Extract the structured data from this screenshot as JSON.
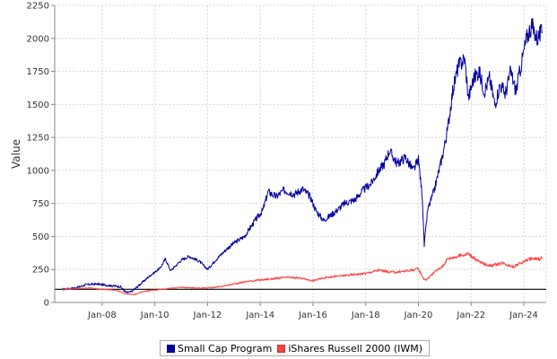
{
  "chart_data": {
    "type": "line",
    "title": "",
    "xlabel": "",
    "ylabel": "Value",
    "ylim": [
      0,
      2250
    ],
    "yticks": [
      0,
      250,
      500,
      750,
      1000,
      1250,
      1500,
      1750,
      2000,
      2250
    ],
    "xlim": [
      2006.2,
      2024.85
    ],
    "xticks": [
      {
        "value": 2008.0,
        "label": "Jan-08"
      },
      {
        "value": 2010.0,
        "label": "Jan-10"
      },
      {
        "value": 2012.0,
        "label": "Jan-12"
      },
      {
        "value": 2014.0,
        "label": "Jan-14"
      },
      {
        "value": 2016.0,
        "label": "Jan-16"
      },
      {
        "value": 2018.0,
        "label": "Jan-18"
      },
      {
        "value": 2020.0,
        "label": "Jan-20"
      },
      {
        "value": 2022.0,
        "label": "Jan-22"
      },
      {
        "value": 2024.0,
        "label": "Jan-24"
      }
    ],
    "grid": true,
    "legend_position": "bottom",
    "reference_line": {
      "y": 100,
      "color": "#000000"
    },
    "series": [
      {
        "name": "Small Cap Program",
        "color": "#0000a0",
        "x": [
          2006.5,
          2007.0,
          2007.4,
          2007.8,
          2008.2,
          2008.7,
          2008.9,
          2009.1,
          2009.4,
          2009.8,
          2010.2,
          2010.4,
          2010.6,
          2011.0,
          2011.3,
          2011.7,
          2012.0,
          2012.3,
          2012.7,
          2013.0,
          2013.4,
          2013.8,
          2014.1,
          2014.3,
          2014.6,
          2014.9,
          2015.3,
          2015.6,
          2015.9,
          2016.1,
          2016.4,
          2016.8,
          2017.2,
          2017.6,
          2017.9,
          2018.2,
          2018.5,
          2018.7,
          2018.9,
          2019.2,
          2019.5,
          2019.8,
          2020.0,
          2020.15,
          2020.22,
          2020.35,
          2020.6,
          2020.9,
          2021.1,
          2021.3,
          2021.5,
          2021.75,
          2021.9,
          2022.1,
          2022.3,
          2022.5,
          2022.7,
          2022.9,
          2023.1,
          2023.3,
          2023.5,
          2023.7,
          2023.9,
          2024.1,
          2024.3,
          2024.5,
          2024.7
        ],
        "y": [
          100,
          110,
          135,
          140,
          130,
          120,
          75,
          80,
          130,
          200,
          260,
          330,
          240,
          320,
          350,
          310,
          250,
          320,
          400,
          450,
          500,
          620,
          700,
          840,
          800,
          850,
          820,
          860,
          800,
          700,
          620,
          680,
          750,
          780,
          850,
          900,
          1000,
          1050,
          1150,
          1050,
          1100,
          1000,
          1080,
          800,
          430,
          700,
          850,
          1100,
          1300,
          1600,
          1780,
          1850,
          1550,
          1700,
          1750,
          1600,
          1700,
          1500,
          1650,
          1580,
          1750,
          1600,
          1800,
          2000,
          2100,
          2000,
          2050
        ]
      },
      {
        "name": "iShares Russell 2000 (IWM)",
        "color": "#ff4040",
        "x": [
          2006.5,
          2007.0,
          2007.5,
          2008.0,
          2008.5,
          2008.9,
          2009.2,
          2009.6,
          2010.0,
          2010.5,
          2011.0,
          2011.5,
          2012.0,
          2012.5,
          2013.0,
          2013.5,
          2014.0,
          2014.5,
          2015.0,
          2015.5,
          2016.0,
          2016.5,
          2017.0,
          2017.5,
          2018.0,
          2018.5,
          2018.9,
          2019.2,
          2019.6,
          2020.0,
          2020.2,
          2020.3,
          2020.6,
          2020.9,
          2021.1,
          2021.5,
          2021.9,
          2022.2,
          2022.5,
          2022.8,
          2023.2,
          2023.6,
          2023.9,
          2024.2,
          2024.6,
          2024.7
        ],
        "y": [
          100,
          105,
          110,
          100,
          95,
          65,
          60,
          85,
          95,
          105,
          115,
          110,
          110,
          120,
          140,
          160,
          170,
          180,
          190,
          185,
          165,
          190,
          200,
          210,
          220,
          245,
          230,
          230,
          240,
          255,
          180,
          170,
          230,
          270,
          330,
          350,
          370,
          320,
          290,
          280,
          300,
          270,
          300,
          330,
          330,
          340
        ]
      }
    ]
  }
}
